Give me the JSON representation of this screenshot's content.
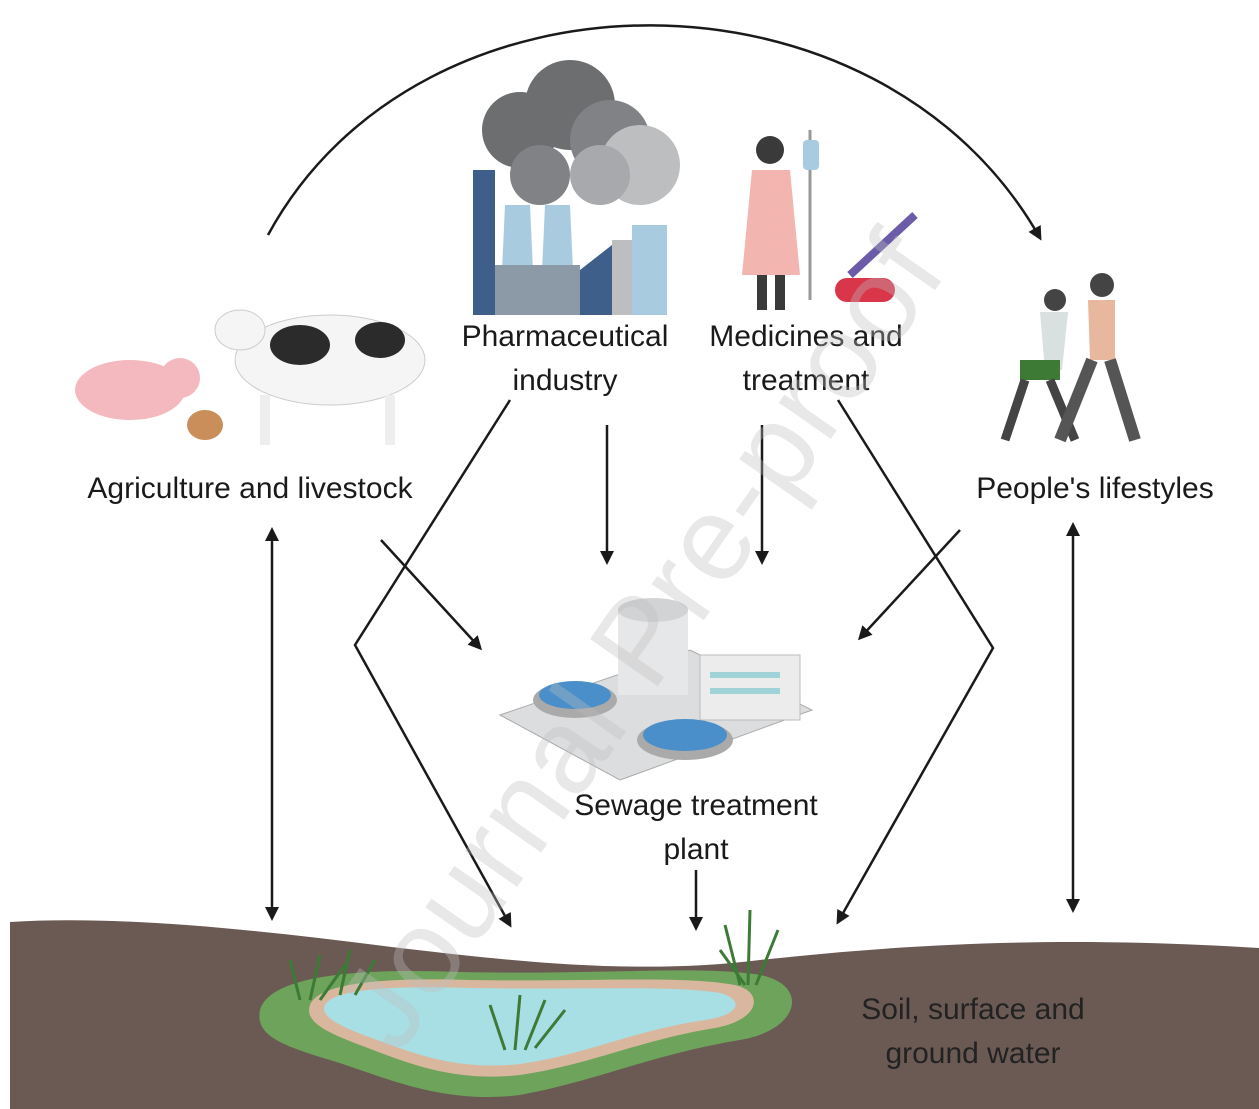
{
  "nodes": [
    {
      "label": "Pharmaceutical industry"
    },
    {
      "label": "Medicines and treatment"
    },
    {
      "label": "Agriculture and livestock"
    },
    {
      "label": "People's lifestyles"
    },
    {
      "label": "Sewage treatment plant"
    },
    {
      "label": "Soil, surface and ground water"
    }
  ],
  "watermark": "Journal Pre-proof"
}
